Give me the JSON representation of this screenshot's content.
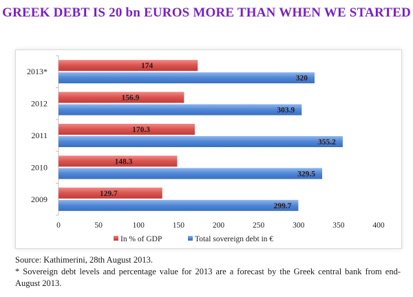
{
  "headline": "GREEK DEBT IS 20 bn EUROS MORE THAN WHEN WE STARTED",
  "source": "Source: Kathimerini, 28th August 2013.",
  "footnote": "* Sovereign debt levels and percentage value for 2013 are a forecast by the Greek central bank from end-August 2013.",
  "colors": {
    "headline": "#7a1fc4",
    "gdp_series": "#d9534f",
    "debt_series": "#4f86d6"
  },
  "chart_data": {
    "type": "bar",
    "orientation": "horizontal",
    "title": "",
    "xlabel": "",
    "ylabel": "",
    "categories": [
      "2013*",
      "2012",
      "2011",
      "2010",
      "2009"
    ],
    "series": [
      {
        "name": "In % of GDP",
        "color": "#d9534f",
        "values": [
          174,
          156.9,
          170.3,
          148.3,
          129.7
        ]
      },
      {
        "name": "Total sovereign debt in €",
        "color": "#4f86d6",
        "values": [
          320,
          303.9,
          355.2,
          329.5,
          299.7
        ]
      }
    ],
    "xlim": [
      0,
      400
    ],
    "xticks": [
      "0",
      "50",
      "100",
      "150",
      "200",
      "250",
      "300",
      "350",
      "400"
    ],
    "data_labels": [
      [
        "174",
        "156.9",
        "170.3",
        "148.3",
        "129.7"
      ],
      [
        "320",
        "303.9",
        "355.2",
        "329.5",
        "299.7"
      ]
    ],
    "grid": false,
    "legend": "bottom"
  }
}
